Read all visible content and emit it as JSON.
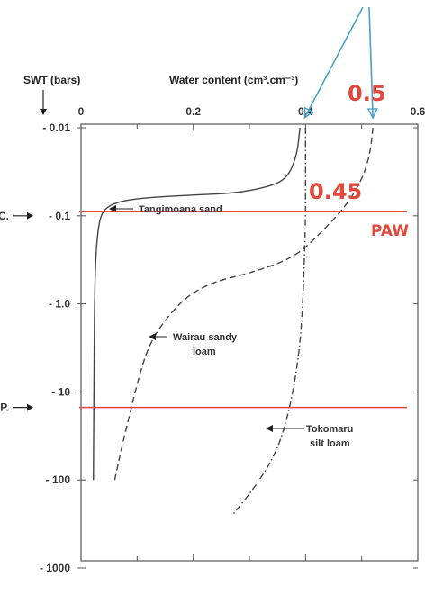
{
  "chart_data": {
    "type": "line",
    "title": "",
    "xlabel": "Water content (cm³.cm⁻³)",
    "ylabel": "SWT (bars)",
    "xlim": [
      0,
      0.6
    ],
    "ylim": [
      -0.01,
      -1000
    ],
    "y_scale": "log",
    "x_ticks": [
      {
        "value": 0,
        "label": "0"
      },
      {
        "value": 0.2,
        "label": "0.2"
      },
      {
        "value": 0.4,
        "label": "0.4"
      },
      {
        "value": 0.6,
        "label": "0.6"
      }
    ],
    "y_ticks": [
      {
        "value": 0.01,
        "label": "- 0.01"
      },
      {
        "value": 0.1,
        "label": "- 0.1"
      },
      {
        "value": 1,
        "label": "- 1.0"
      },
      {
        "value": 10,
        "label": "- 10"
      },
      {
        "value": 100,
        "label": "- 100"
      },
      {
        "value": 1000,
        "label": "- 1000"
      }
    ],
    "row_markers": [
      {
        "label": "F.C.",
        "at": 0.1
      },
      {
        "label": "W.P.",
        "at": 15
      }
    ],
    "series": [
      {
        "name": "Tangimoana sand",
        "style": "solid",
        "points": [
          [
            0.39,
            0.01
          ],
          [
            0.385,
            0.02
          ],
          [
            0.37,
            0.035
          ],
          [
            0.345,
            0.045
          ],
          [
            0.28,
            0.055
          ],
          [
            0.2,
            0.058
          ],
          [
            0.12,
            0.062
          ],
          [
            0.07,
            0.068
          ],
          [
            0.045,
            0.08
          ],
          [
            0.035,
            0.1
          ],
          [
            0.03,
            0.15
          ],
          [
            0.026,
            0.3
          ],
          [
            0.024,
            1
          ],
          [
            0.023,
            10
          ],
          [
            0.022,
            100
          ]
        ]
      },
      {
        "name": "Wairau sandy loam",
        "style": "dashed",
        "points": [
          [
            0.52,
            0.01
          ],
          [
            0.515,
            0.02
          ],
          [
            0.5,
            0.04
          ],
          [
            0.47,
            0.08
          ],
          [
            0.43,
            0.15
          ],
          [
            0.38,
            0.3
          ],
          [
            0.3,
            0.45
          ],
          [
            0.24,
            0.55
          ],
          [
            0.19,
            0.8
          ],
          [
            0.15,
            1.5
          ],
          [
            0.12,
            3
          ],
          [
            0.1,
            8
          ],
          [
            0.085,
            20
          ],
          [
            0.07,
            50
          ],
          [
            0.06,
            100
          ]
        ]
      },
      {
        "name": "Tokomaru silt loam",
        "style": "dashdot",
        "points": [
          [
            0.4,
            0.01
          ],
          [
            0.4,
            0.03
          ],
          [
            0.4,
            0.1
          ],
          [
            0.398,
            0.3
          ],
          [
            0.395,
            1
          ],
          [
            0.39,
            3
          ],
          [
            0.378,
            10
          ],
          [
            0.36,
            30
          ],
          [
            0.34,
            60
          ],
          [
            0.31,
            120
          ],
          [
            0.27,
            250
          ]
        ]
      }
    ],
    "series_labels": [
      {
        "text": "Tangimoana sand"
      },
      {
        "text": "Wairau sandy"
      },
      {
        "text": "loam"
      },
      {
        "text": "Tokomaru"
      },
      {
        "text": "silt loam"
      }
    ],
    "reference_lines": [
      {
        "axis": "y",
        "value": 0.09,
        "color": "#e0483c"
      },
      {
        "axis": "y",
        "value": 15,
        "color": "#e0483c"
      }
    ],
    "annotations": [
      {
        "text": "0.5",
        "color": "#e0483c"
      },
      {
        "text": "0.45",
        "color": "#e0483c"
      },
      {
        "text": "PAW",
        "color": "#e0483c"
      }
    ],
    "arrow_color": "#4aa0c8",
    "curve_color": "#444444",
    "accent_color": "#e0483c"
  }
}
